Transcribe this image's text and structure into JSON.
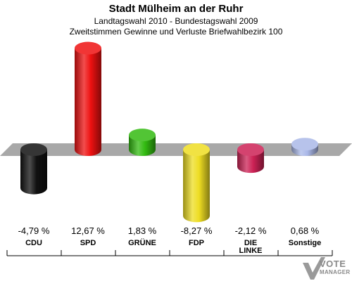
{
  "header": {
    "title": "Stadt Mülheim an der Ruhr",
    "subtitle1": "Landtagswahl 2010 - Bundestagswahl 2009",
    "subtitle2": "Zweitstimmen Gewinne und Verluste Briefwahlbezirk 100"
  },
  "chart_data": {
    "type": "bar",
    "categories": [
      "CDU",
      "SPD",
      "GRÜNE",
      "FDP",
      "DIE LINKE",
      "Sonstige"
    ],
    "values": [
      -4.79,
      12.67,
      1.83,
      -8.27,
      -2.12,
      0.68
    ],
    "value_labels": [
      "-4,79 %",
      "12,67 %",
      "1,83 %",
      "-8,27 %",
      "-2,12 %",
      "0,68 %"
    ],
    "category_lines": [
      [
        "CDU"
      ],
      [
        "SPD"
      ],
      [
        "GRÜNE"
      ],
      [
        "FDP"
      ],
      [
        "DIE",
        "LINKE"
      ],
      [
        "Sonstige"
      ]
    ],
    "colors": [
      "#111111",
      "#ee1111",
      "#33bb11",
      "#eedd22",
      "#cc2255",
      "#aab8e8"
    ],
    "title": "Stadt Mülheim an der Ruhr",
    "xlabel": "",
    "ylabel": "",
    "grid": false,
    "legend": "none"
  },
  "logo": {
    "line1": "VOTE",
    "line2": "MANAGER"
  }
}
